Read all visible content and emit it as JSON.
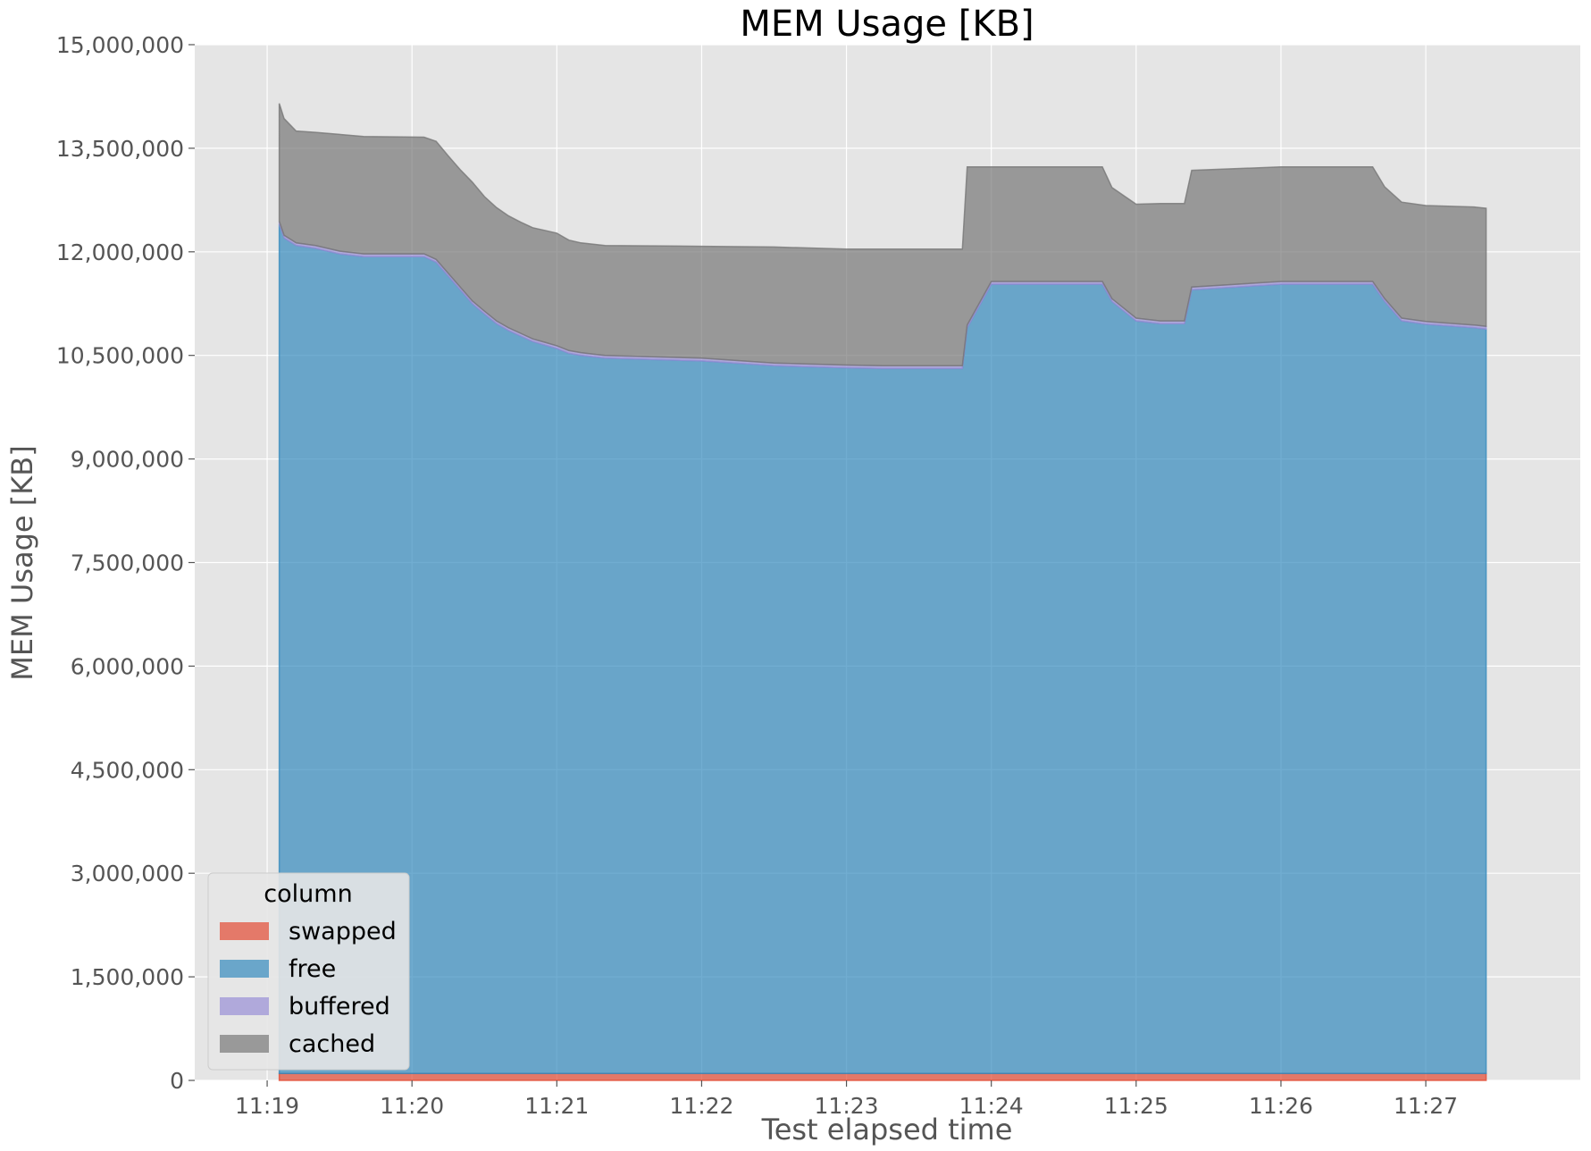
{
  "chart_data": {
    "type": "area",
    "stacked": true,
    "title": "MEM Usage [KB]",
    "xlabel": "Test elapsed time",
    "ylabel": "MEM Usage [KB]",
    "ylim": [
      0,
      15000000
    ],
    "xlim": [
      "11:18:30",
      "11:28:04"
    ],
    "x_ticks": [
      "11:19",
      "11:20",
      "11:21",
      "11:22",
      "11:23",
      "11:24",
      "11:25",
      "11:26",
      "11:27"
    ],
    "y_ticks": [
      "0",
      "1,500,000",
      "3,000,000",
      "4,500,000",
      "6,000,000",
      "7,500,000",
      "9,000,000",
      "10,500,000",
      "12,000,000",
      "13,500,000",
      "15,000,000"
    ],
    "grid": true,
    "legend": {
      "title": "column",
      "position": "lower-left"
    },
    "x": [
      "11:19:05",
      "11:19:07",
      "11:19:12",
      "11:19:20",
      "11:19:30",
      "11:19:40",
      "11:20:05",
      "11:20:10",
      "11:20:15",
      "11:20:20",
      "11:20:25",
      "11:20:30",
      "11:20:35",
      "11:20:40",
      "11:20:45",
      "11:20:50",
      "11:20:55",
      "11:21:00",
      "11:21:05",
      "11:21:10",
      "11:21:15",
      "11:21:20",
      "11:22:00",
      "11:22:30",
      "11:23:00",
      "11:23:15",
      "11:23:30",
      "11:23:48",
      "11:23:50",
      "11:24:00",
      "11:24:30",
      "11:24:46",
      "11:24:50",
      "11:25:00",
      "11:25:10",
      "11:25:20",
      "11:25:23",
      "11:26:00",
      "11:26:30",
      "11:26:38",
      "11:26:43",
      "11:26:50",
      "11:27:00",
      "11:27:20",
      "11:27:25"
    ],
    "series": [
      {
        "name": "swapped",
        "color": "#E24A33",
        "values": [
          100000,
          100000,
          100000,
          100000,
          100000,
          100000,
          100000,
          100000,
          100000,
          100000,
          100000,
          100000,
          100000,
          100000,
          100000,
          100000,
          100000,
          100000,
          100000,
          100000,
          100000,
          100000,
          100000,
          100000,
          100000,
          100000,
          100000,
          100000,
          100000,
          100000,
          100000,
          100000,
          100000,
          100000,
          100000,
          100000,
          100000,
          100000,
          100000,
          100000,
          100000,
          100000,
          100000,
          100000,
          100000
        ]
      },
      {
        "name": "free",
        "color": "#348ABD",
        "values": [
          12300000,
          12100000,
          11990000,
          11950000,
          11870000,
          11830000,
          11830000,
          11750000,
          11550000,
          11350000,
          11150000,
          11000000,
          10860000,
          10760000,
          10680000,
          10600000,
          10550000,
          10500000,
          10430000,
          10400000,
          10380000,
          10360000,
          10320000,
          10250000,
          10220000,
          10210000,
          10210000,
          10210000,
          10800000,
          11430000,
          11430000,
          11430000,
          11180000,
          10900000,
          10860000,
          10860000,
          11350000,
          11430000,
          11430000,
          11430000,
          11180000,
          10900000,
          10850000,
          10800000,
          10780000
        ]
      },
      {
        "name": "buffered",
        "color": "#988ED5",
        "values": [
          40000,
          40000,
          40000,
          40000,
          40000,
          40000,
          40000,
          40000,
          40000,
          40000,
          40000,
          40000,
          40000,
          40000,
          40000,
          40000,
          40000,
          40000,
          40000,
          40000,
          40000,
          40000,
          40000,
          40000,
          40000,
          40000,
          40000,
          40000,
          40000,
          40000,
          40000,
          40000,
          40000,
          40000,
          40000,
          40000,
          40000,
          40000,
          40000,
          40000,
          40000,
          40000,
          40000,
          40000,
          40000
        ]
      },
      {
        "name": "cached",
        "color": "#777777",
        "values": [
          1710000,
          1690000,
          1620000,
          1640000,
          1690000,
          1700000,
          1690000,
          1710000,
          1700000,
          1700000,
          1720000,
          1660000,
          1640000,
          1620000,
          1610000,
          1610000,
          1620000,
          1630000,
          1600000,
          1590000,
          1590000,
          1590000,
          1620000,
          1680000,
          1680000,
          1690000,
          1690000,
          1690000,
          2290000,
          1660000,
          1660000,
          1660000,
          1610000,
          1650000,
          1700000,
          1700000,
          1690000,
          1660000,
          1660000,
          1660000,
          1620000,
          1680000,
          1680000,
          1710000,
          1710000
        ]
      }
    ]
  }
}
